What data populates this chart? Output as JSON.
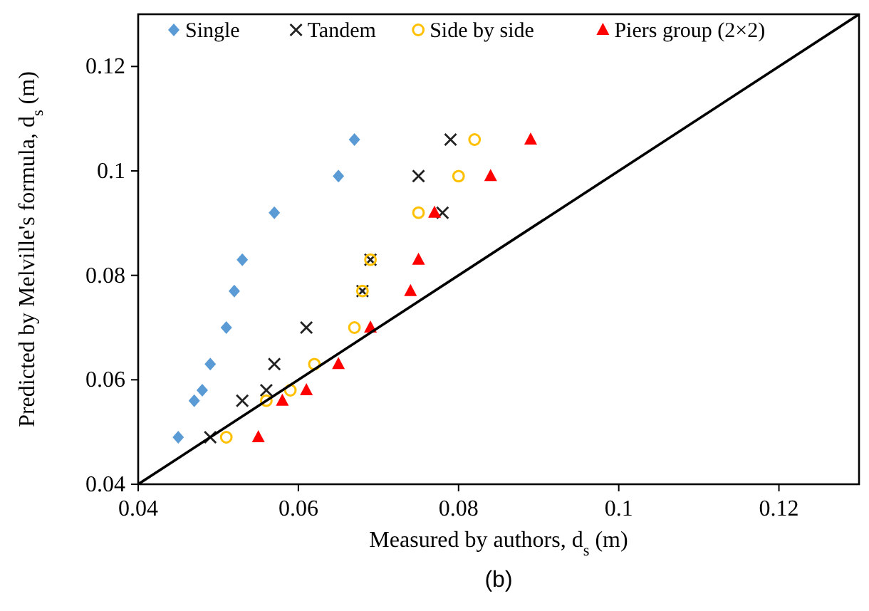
{
  "chart_data": {
    "type": "scatter",
    "xlabel": "Measured by authors, d$_{s}$ (m)",
    "ylabel": "Predicted by Melville's formula, d$_{s}$ (m)",
    "annotations": [
      "(b)"
    ],
    "xlim": [
      0.04,
      0.13
    ],
    "ylim": [
      0.04,
      0.13
    ],
    "xticks": [
      0.04,
      0.06,
      0.08,
      0.1,
      0.12
    ],
    "yticks": [
      0.04,
      0.06,
      0.08,
      0.1,
      0.12
    ],
    "grid": false,
    "legend": "top",
    "series": [
      {
        "name": "Single",
        "color": "#5b9bd5",
        "marker": "diamond",
        "x": [
          0.045,
          0.047,
          0.048,
          0.049,
          0.051,
          0.052,
          0.053,
          0.057,
          0.065,
          0.067
        ],
        "values": [
          0.049,
          0.056,
          0.058,
          0.063,
          0.07,
          0.077,
          0.083,
          0.092,
          0.099,
          0.106
        ]
      },
      {
        "name": "Tandem",
        "color": "#222222",
        "marker": "cross",
        "x": [
          0.049,
          0.053,
          0.056,
          0.057,
          0.061,
          0.068,
          0.069,
          0.078,
          0.075,
          0.079
        ],
        "values": [
          0.049,
          0.056,
          0.058,
          0.063,
          0.07,
          0.077,
          0.083,
          0.092,
          0.099,
          0.106
        ]
      },
      {
        "name": "Side by side",
        "color": "#ffc000",
        "marker": "circle",
        "x": [
          0.051,
          0.056,
          0.059,
          0.062,
          0.067,
          0.068,
          0.069,
          0.075,
          0.08,
          0.082
        ],
        "values": [
          0.049,
          0.056,
          0.058,
          0.063,
          0.07,
          0.077,
          0.083,
          0.092,
          0.099,
          0.106
        ]
      },
      {
        "name": "Piers group (2×2)",
        "color": "#ff0000",
        "marker": "triangle",
        "x": [
          0.055,
          0.058,
          0.061,
          0.065,
          0.069,
          0.074,
          0.075,
          0.077,
          0.084,
          0.089
        ],
        "values": [
          0.049,
          0.056,
          0.058,
          0.063,
          0.07,
          0.077,
          0.083,
          0.092,
          0.099,
          0.106
        ]
      },
      {
        "type": "line",
        "color": "#000000",
        "marker": "none",
        "x": [
          0.04,
          0.13
        ],
        "values": [
          0.04,
          0.13
        ]
      }
    ]
  }
}
